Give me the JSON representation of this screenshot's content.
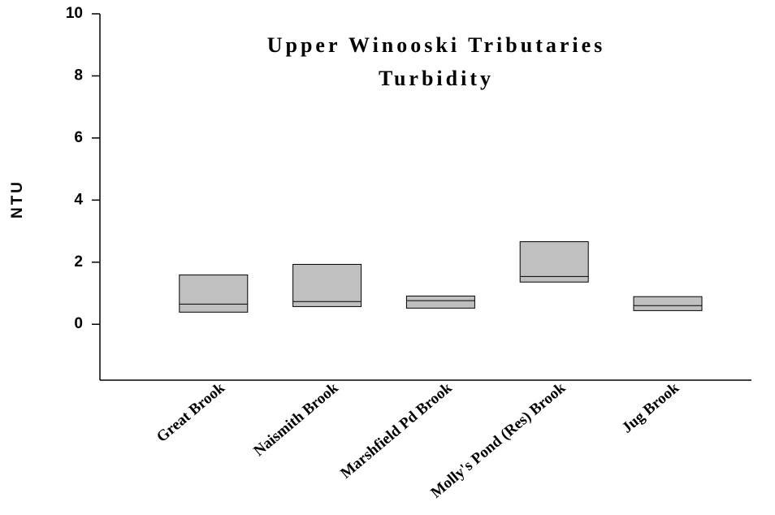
{
  "chart_data": {
    "type": "box",
    "title": [
      "Upper Winooski Tributaries",
      "Turbidity"
    ],
    "y_label": "NTU",
    "categories": [
      "Great Brook",
      "Naismith Brook",
      "Marshfield Pd Brook",
      "Molly's Pond (Res) Brook",
      "Jug Brook"
    ],
    "q1": [
      0.39,
      0.57,
      0.52,
      1.36,
      0.44
    ],
    "median": [
      0.65,
      0.73,
      0.76,
      1.54,
      0.6
    ],
    "q3": [
      1.59,
      1.93,
      0.91,
      2.66,
      0.89
    ],
    "color": "#c0c0c0",
    "ylim": [
      -1.8,
      10
    ],
    "yticks": [
      0,
      2,
      4,
      6,
      8,
      10
    ]
  }
}
